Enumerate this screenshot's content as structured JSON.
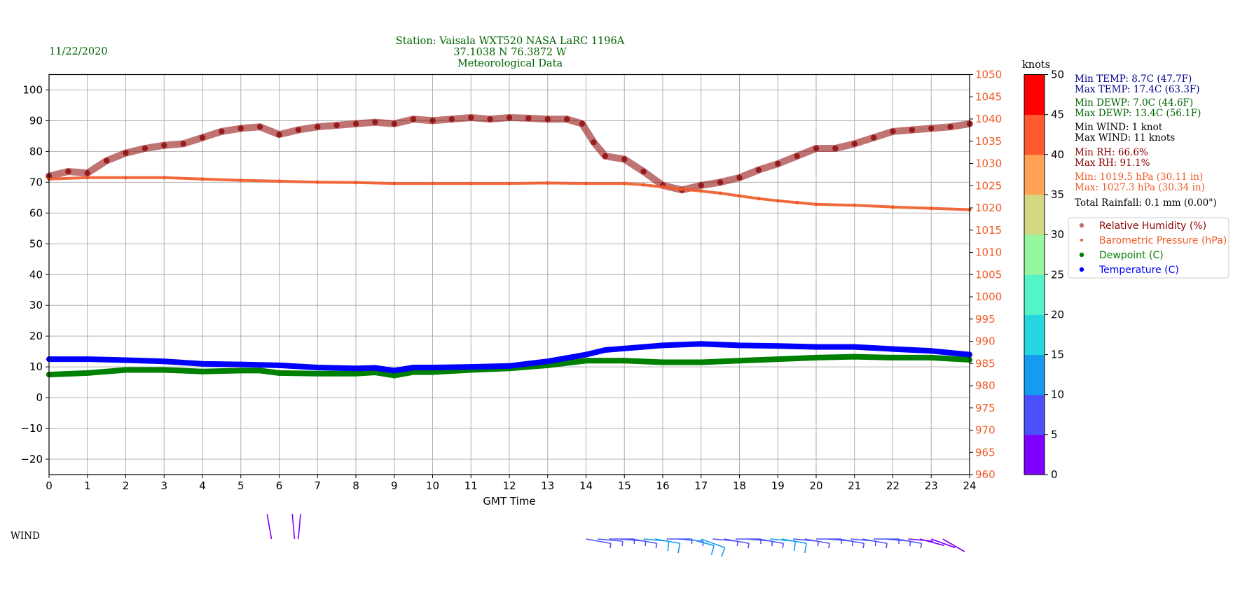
{
  "date": "11/22/2020",
  "header": {
    "line1": "Station:  Vaisala WXT520  NASA LaRC 1196A",
    "line2": "37.1038 N 76.3872 W",
    "line3": "Meteorological Data"
  },
  "colorbar_label": "knots",
  "wind_label": "WIND",
  "colors": {
    "title": "#006400",
    "rh": "#8b0000",
    "pressure": "#f05a28",
    "dewpoint": "#008000",
    "temperature": "#0000ff",
    "colorbar": [
      "#7f00ff",
      "#4b52fb",
      "#159cf0",
      "#27d7df",
      "#55f3c8",
      "#95f69f",
      "#d3d883",
      "#ffa256",
      "#ff5a2e",
      "#ff0000"
    ]
  },
  "stats": [
    {
      "text": "Min TEMP: 8.7C (47.7F)",
      "color": "#00008b"
    },
    {
      "text": "Max TEMP: 17.4C (63.3F)",
      "color": "#00008b"
    },
    {
      "text": "Min DEWP: 7.0C (44.6F)",
      "color": "#006400"
    },
    {
      "text": "Max DEWP: 13.4C (56.1F)",
      "color": "#006400"
    },
    {
      "text": "Min WIND: 1 knot",
      "color": "#000000"
    },
    {
      "text": "Max WIND: 11 knots",
      "color": "#000000"
    },
    {
      "text": "Min RH: 66.6%",
      "color": "#8b0000"
    },
    {
      "text": "Max RH: 91.1%",
      "color": "#8b0000"
    },
    {
      "text": "Min: 1019.5 hPa (30.11 in)",
      "color": "#f05a28"
    },
    {
      "text": "Max: 1027.3 hPa (30.34 in)",
      "color": "#f05a28"
    },
    {
      "text": "Total Rainfall: 0.1 mm (0.00\")",
      "color": "#000000"
    }
  ],
  "chart_data": {
    "type": "line",
    "xlabel": "GMT Time",
    "xlim": [
      0,
      24
    ],
    "x_ticks": [
      0,
      1,
      2,
      3,
      4,
      5,
      6,
      7,
      8,
      9,
      10,
      11,
      12,
      13,
      14,
      15,
      16,
      17,
      18,
      19,
      20,
      21,
      22,
      23,
      24
    ],
    "y_left": {
      "lim": [
        -25,
        105
      ],
      "ticks": [
        -20,
        -10,
        0,
        10,
        20,
        30,
        40,
        50,
        60,
        70,
        80,
        90,
        100
      ]
    },
    "y_right": {
      "lim": [
        960,
        1050
      ],
      "ticks": [
        960,
        965,
        970,
        975,
        980,
        985,
        990,
        995,
        1000,
        1005,
        1010,
        1015,
        1020,
        1025,
        1030,
        1035,
        1040,
        1045,
        1050
      ],
      "label_color": "#f05a28"
    },
    "grid": true,
    "legend_position": "right",
    "series": [
      {
        "name": "Relative Humidity (%)",
        "axis": "left",
        "color": "#8b0000",
        "marker": "large-dot",
        "x": [
          0,
          0.5,
          1,
          1.5,
          2,
          2.5,
          3,
          3.5,
          4,
          4.5,
          5,
          5.5,
          6,
          6.5,
          7,
          7.5,
          8,
          8.5,
          9,
          9.5,
          10,
          10.5,
          11,
          11.5,
          12,
          12.5,
          13,
          13.5,
          13.9,
          14.2,
          14.5,
          15,
          15.5,
          16,
          16.5,
          17,
          17.5,
          18,
          18.5,
          19,
          19.5,
          20,
          20.5,
          21,
          21.5,
          22,
          22.5,
          23,
          23.5,
          24
        ],
        "y": [
          72,
          73.5,
          73,
          77,
          79.5,
          81,
          82,
          82.5,
          84.5,
          86.5,
          87.5,
          88,
          85.5,
          87,
          88,
          88.5,
          89,
          89.5,
          89,
          90.5,
          90,
          90.5,
          91,
          90.5,
          91,
          90.8,
          90.5,
          90.5,
          89,
          83,
          78.5,
          77.5,
          73.5,
          69,
          67.5,
          69,
          70,
          71.5,
          74,
          76,
          78.5,
          81,
          81,
          82.5,
          84.5,
          86.5,
          87,
          87.5,
          88,
          89
        ]
      },
      {
        "name": "Barometric Pressure (hPa)",
        "axis": "right",
        "color": "#f05a28",
        "marker": "small-dot",
        "x": [
          0,
          1,
          2,
          3,
          4,
          5,
          6,
          7,
          8,
          9,
          10,
          11,
          12,
          13,
          14,
          15,
          15.5,
          16,
          16.5,
          17,
          17.5,
          18,
          18.5,
          19,
          19.5,
          20,
          21,
          22,
          23,
          24
        ],
        "y": [
          1026.5,
          1026.8,
          1026.8,
          1026.8,
          1026.5,
          1026.2,
          1026,
          1025.8,
          1025.7,
          1025.5,
          1025.5,
          1025.5,
          1025.5,
          1025.6,
          1025.5,
          1025.5,
          1025.2,
          1024.7,
          1024.2,
          1023.8,
          1023.3,
          1022.7,
          1022.1,
          1021.6,
          1021.2,
          1020.8,
          1020.6,
          1020.2,
          1019.9,
          1019.6
        ]
      },
      {
        "name": "Dewpoint (C)",
        "axis": "left",
        "color": "#008000",
        "marker": "dot",
        "x": [
          0,
          1,
          2,
          3,
          4,
          5,
          5.5,
          6,
          7,
          8,
          8.5,
          9,
          9.5,
          10,
          11,
          12,
          13,
          14,
          15,
          16,
          17,
          18,
          19,
          20,
          21,
          22,
          23,
          24
        ],
        "y": [
          7.5,
          8,
          9,
          9,
          8.5,
          8.8,
          8.8,
          8,
          7.8,
          7.8,
          8.2,
          7.2,
          8.3,
          8.3,
          9,
          9.5,
          10.5,
          12,
          12,
          11.5,
          11.5,
          12,
          12.5,
          13,
          13.3,
          13,
          13,
          12.3
        ]
      },
      {
        "name": "Temperature (C)",
        "axis": "left",
        "color": "#0000ff",
        "marker": "dot",
        "x": [
          0,
          1,
          2,
          3,
          4,
          5,
          6,
          7,
          8,
          8.5,
          9,
          9.5,
          10,
          11,
          12,
          13,
          14,
          14.5,
          15,
          16,
          17,
          18,
          19,
          20,
          21,
          22,
          23,
          24
        ],
        "y": [
          12.5,
          12.5,
          12.2,
          11.8,
          11,
          10.8,
          10.5,
          9.8,
          9.5,
          9.7,
          8.8,
          9.8,
          9.8,
          10,
          10.3,
          11.8,
          14,
          15.5,
          16,
          17,
          17.5,
          17,
          16.8,
          16.5,
          16.5,
          15.8,
          15.2,
          14
        ]
      }
    ],
    "wind": {
      "colorbar_ticks": [
        0,
        5,
        10,
        15,
        20,
        25,
        30,
        35,
        40,
        45,
        50
      ],
      "hours": [
        5.8,
        6.4,
        6.5,
        14,
        14.3,
        14.6,
        14.9,
        15.2,
        15.5,
        15.8,
        16.1,
        16.4,
        16.7,
        17,
        17.3,
        17.6,
        17.9,
        18.2,
        18.5,
        18.8,
        19.1,
        19.4,
        19.7,
        20,
        20.3,
        20.6,
        20.9,
        21.2,
        21.5,
        21.8,
        22.1,
        22.4,
        22.7,
        23,
        23.3
      ],
      "speed_knots": [
        2,
        3,
        2,
        5,
        8,
        9,
        9,
        8,
        10,
        10,
        9,
        8,
        11,
        10,
        8,
        8,
        9,
        7,
        8,
        10,
        10,
        9,
        8,
        9,
        7,
        8,
        8,
        7,
        6,
        5,
        5,
        4,
        3,
        2,
        2
      ],
      "direction_deg": [
        350,
        355,
        5,
        100,
        95,
        90,
        95,
        100,
        95,
        100,
        90,
        95,
        105,
        110,
        95,
        100,
        90,
        95,
        100,
        95,
        100,
        95,
        100,
        90,
        95,
        100,
        95,
        100,
        90,
        95,
        100,
        95,
        105,
        110,
        120
      ]
    }
  }
}
